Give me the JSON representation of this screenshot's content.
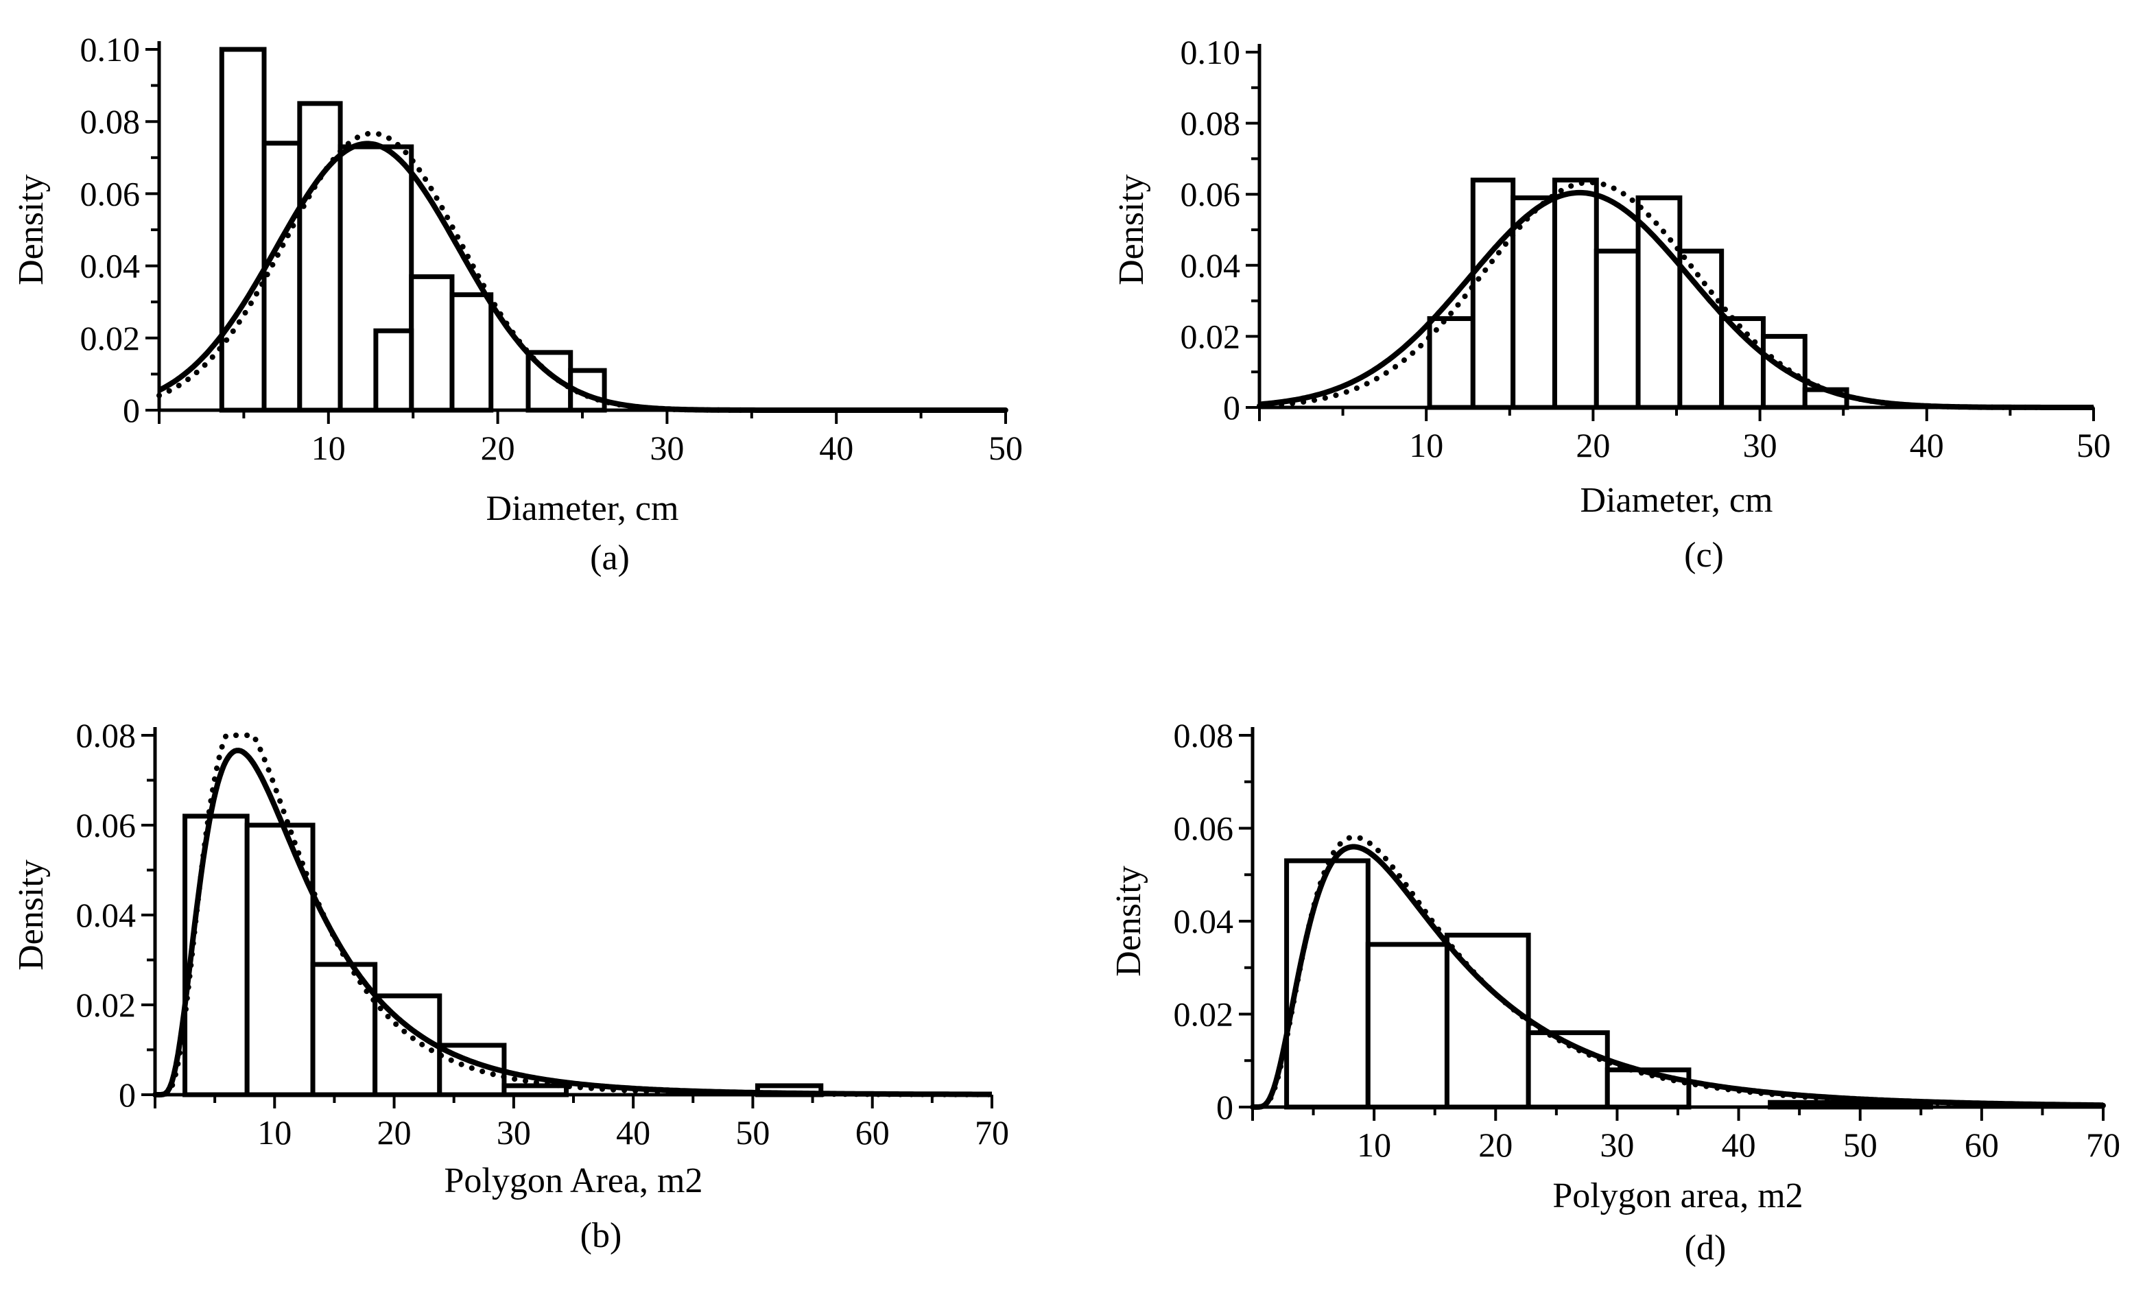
{
  "figure": {
    "charts": [
      {
        "id": "a",
        "type": "bar",
        "panel_label": "(a)",
        "xlabel": "Diameter, cm",
        "ylabel": "Density",
        "xlim": [
          0,
          50
        ],
        "ylim": [
          0,
          0.1
        ],
        "xticks": [
          10,
          20,
          30,
          40,
          50
        ],
        "xtick_labels": [
          "10",
          "20",
          "30",
          "40",
          "50"
        ],
        "yticks": [
          0,
          0.02,
          0.04,
          0.06,
          0.08,
          0.1
        ],
        "ytick_labels": [
          "0",
          "0.02",
          "0.04",
          "0.06",
          "0.08",
          "0.10"
        ],
        "bins": [
          {
            "x0": 3.7,
            "x1": 6.2,
            "density": 0.1
          },
          {
            "x0": 6.2,
            "x1": 8.3,
            "density": 0.074
          },
          {
            "x0": 8.3,
            "x1": 10.7,
            "density": 0.085
          },
          {
            "x0": 10.7,
            "x1": 14.9,
            "density": 0.073
          },
          {
            "x0": 14.9,
            "x1": 17.3,
            "density": 0.037
          },
          {
            "x0": 17.3,
            "x1": 19.6,
            "density": 0.032
          },
          {
            "x0": 19.6,
            "x1": 21.8,
            "density": 0.0
          },
          {
            "x0": 21.8,
            "x1": 24.3,
            "density": 0.016
          },
          {
            "x0": 24.3,
            "x1": 26.3,
            "density": 0.011
          }
        ],
        "extra_bars": [
          {
            "x0": 12.8,
            "x1": 14.9,
            "density": 0.022
          }
        ],
        "curves": [
          {
            "name": "fitted (solid)",
            "style": "solid",
            "dist": "normal",
            "mean": 12.3,
            "sd": 5.4
          },
          {
            "name": "fitted (dotted)",
            "style": "dotted",
            "dist": "normal",
            "mean": 12.6,
            "sd": 5.2
          }
        ]
      },
      {
        "id": "c",
        "type": "bar",
        "panel_label": "(c)",
        "xlabel": "Diameter, cm",
        "ylabel": "Density",
        "xlim": [
          0,
          50
        ],
        "ylim": [
          0,
          0.1
        ],
        "xticks": [
          10,
          20,
          30,
          40,
          50
        ],
        "xtick_labels": [
          "10",
          "20",
          "30",
          "40",
          "50"
        ],
        "yticks": [
          0,
          0.02,
          0.04,
          0.06,
          0.08,
          0.1
        ],
        "ytick_labels": [
          "0",
          "0.02",
          "0.04",
          "0.06",
          "0.08",
          "0.10"
        ],
        "bins": [
          {
            "x0": 10.2,
            "x1": 12.8,
            "density": 0.025
          },
          {
            "x0": 12.8,
            "x1": 15.2,
            "density": 0.064
          },
          {
            "x0": 15.2,
            "x1": 17.7,
            "density": 0.059
          },
          {
            "x0": 17.7,
            "x1": 20.2,
            "density": 0.064
          },
          {
            "x0": 20.2,
            "x1": 22.7,
            "density": 0.044
          },
          {
            "x0": 22.7,
            "x1": 25.2,
            "density": 0.059
          },
          {
            "x0": 25.2,
            "x1": 27.7,
            "density": 0.044
          },
          {
            "x0": 27.7,
            "x1": 30.2,
            "density": 0.025
          },
          {
            "x0": 30.2,
            "x1": 32.7,
            "density": 0.02
          },
          {
            "x0": 32.7,
            "x1": 35.2,
            "density": 0.005
          }
        ],
        "extra_bars": [],
        "curves": [
          {
            "name": "fitted (solid)",
            "style": "solid",
            "dist": "normal",
            "mean": 19.2,
            "sd": 6.6
          },
          {
            "name": "fitted (dotted)",
            "style": "dotted",
            "dist": "normal",
            "mean": 19.8,
            "sd": 6.3
          }
        ]
      },
      {
        "id": "b",
        "type": "bar",
        "panel_label": "(b)",
        "xlabel": "Polygon Area, m2",
        "ylabel": "Density",
        "xlim": [
          0,
          70
        ],
        "ylim": [
          0,
          0.08
        ],
        "xticks": [
          10,
          20,
          30,
          40,
          50,
          60,
          70
        ],
        "xtick_labels": [
          "10",
          "20",
          "30",
          "40",
          "50",
          "60",
          "70"
        ],
        "yticks": [
          0,
          0.02,
          0.04,
          0.06,
          0.08
        ],
        "ytick_labels": [
          "0",
          "0.02",
          "0.04",
          "0.06",
          "0.08"
        ],
        "bins": [
          {
            "x0": 2.5,
            "x1": 7.7,
            "density": 0.062
          },
          {
            "x0": 7.7,
            "x1": 13.2,
            "density": 0.06
          },
          {
            "x0": 13.2,
            "x1": 18.4,
            "density": 0.029
          },
          {
            "x0": 18.4,
            "x1": 23.8,
            "density": 0.022
          },
          {
            "x0": 23.8,
            "x1": 29.2,
            "density": 0.011
          },
          {
            "x0": 29.2,
            "x1": 34.4,
            "density": 0.002
          },
          {
            "x0": 34.4,
            "x1": 39.8,
            "density": 0.0
          },
          {
            "x0": 39.8,
            "x1": 45.2,
            "density": 0.0
          },
          {
            "x0": 45.2,
            "x1": 50.4,
            "density": 0.0
          },
          {
            "x0": 50.4,
            "x1": 55.7,
            "density": 0.002
          }
        ],
        "extra_bars": [],
        "curves": [
          {
            "name": "fitted (solid)",
            "style": "solid",
            "dist": "lognormal",
            "mu": 2.32,
            "sigma": 0.62
          },
          {
            "name": "fitted (dotted)",
            "style": "dotted",
            "dist": "lognormal",
            "mu": 2.28,
            "sigma": 0.58
          }
        ]
      },
      {
        "id": "d",
        "type": "bar",
        "panel_label": "(d)",
        "xlabel": "Polygon area, m2",
        "ylabel": "Density",
        "xlim": [
          0,
          70
        ],
        "ylim": [
          0,
          0.08
        ],
        "xticks": [
          10,
          20,
          30,
          40,
          50,
          60,
          70
        ],
        "xtick_labels": [
          "10",
          "20",
          "30",
          "40",
          "50",
          "60",
          "70"
        ],
        "yticks": [
          0,
          0.02,
          0.04,
          0.06,
          0.08
        ],
        "ytick_labels": [
          "0",
          "0.02",
          "0.04",
          "0.06",
          "0.08"
        ],
        "bins": [
          {
            "x0": 2.8,
            "x1": 9.5,
            "density": 0.053
          },
          {
            "x0": 9.5,
            "x1": 16.0,
            "density": 0.035
          },
          {
            "x0": 16.0,
            "x1": 22.7,
            "density": 0.037
          },
          {
            "x0": 22.7,
            "x1": 29.2,
            "density": 0.016
          },
          {
            "x0": 29.2,
            "x1": 35.9,
            "density": 0.008
          },
          {
            "x0": 35.9,
            "x1": 42.6,
            "density": 0.0
          },
          {
            "x0": 42.6,
            "x1": 49.1,
            "density": 0.001
          },
          {
            "x0": 49.1,
            "x1": 55.8,
            "density": 0.001
          }
        ],
        "extra_bars": [],
        "curves": [
          {
            "name": "fitted (solid)",
            "style": "solid",
            "dist": "lognormal",
            "mu": 2.58,
            "sigma": 0.68
          },
          {
            "name": "fitted (dotted)",
            "style": "dotted",
            "dist": "lognormal",
            "mu": 2.56,
            "sigma": 0.66
          }
        ]
      }
    ]
  }
}
